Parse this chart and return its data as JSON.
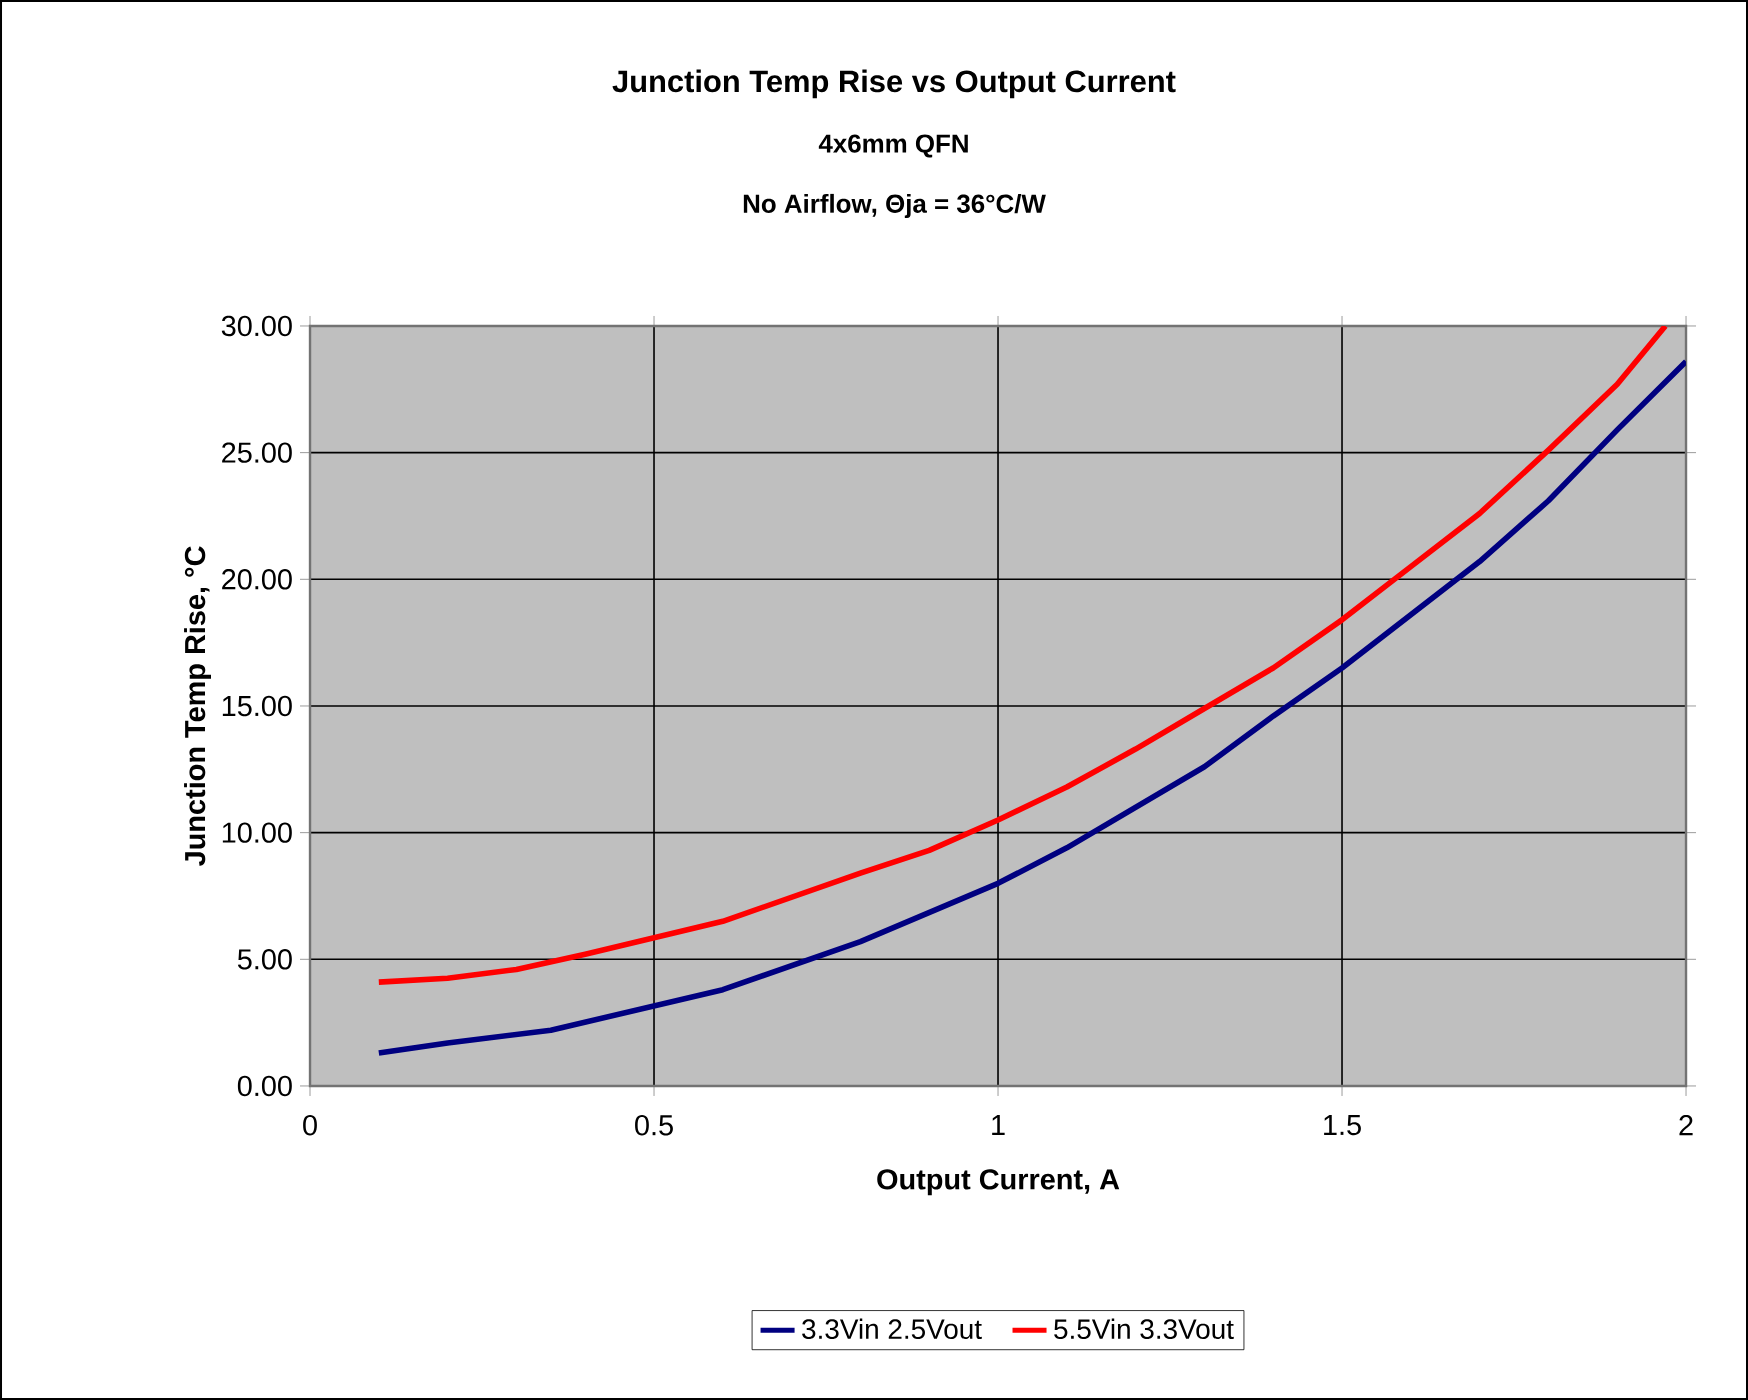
{
  "chart_data": {
    "type": "line",
    "title": "Junction Temp Rise vs Output Current",
    "subtitle": "4x6mm QFN",
    "annotations": [
      "No Airflow, Θja = 36°C/W"
    ],
    "xlabel": "Output Current, A",
    "ylabel": "Junction Temp Rise, °C",
    "xlim": [
      0,
      2
    ],
    "ylim": [
      0,
      30
    ],
    "xticks": [
      0,
      0.5,
      1,
      1.5,
      2
    ],
    "yticks": [
      {
        "value": 0,
        "label": "0.00"
      },
      {
        "value": 5,
        "label": "5.00"
      },
      {
        "value": 10,
        "label": "10.00"
      },
      {
        "value": 15,
        "label": "15.00"
      },
      {
        "value": 20,
        "label": "20.00"
      },
      {
        "value": 25,
        "label": "25.00"
      },
      {
        "value": 30,
        "label": "30.00"
      }
    ],
    "grid": true,
    "legend": "bottom",
    "marker": "none",
    "line_style": "solid",
    "series": [
      {
        "name": "3.3Vin 2.5Vout",
        "color": "#000080",
        "x": [
          0.1,
          0.2,
          0.35,
          0.6,
          0.8,
          1.0,
          1.1,
          1.3,
          1.4,
          1.5,
          1.6,
          1.7,
          1.8,
          1.9,
          2.0
        ],
        "values": [
          1.3,
          1.7,
          2.2,
          3.8,
          5.7,
          8.0,
          9.4,
          12.6,
          14.6,
          16.5,
          18.6,
          20.7,
          23.1,
          25.9,
          28.6
        ]
      },
      {
        "name": "5.5Vin 3.3Vout",
        "color": "#ff0000",
        "x": [
          0.1,
          0.2,
          0.3,
          0.4,
          0.6,
          0.8,
          0.9,
          1.0,
          1.1,
          1.2,
          1.3,
          1.4,
          1.5,
          1.6,
          1.7,
          1.8,
          1.9,
          1.97
        ],
        "values": [
          4.1,
          4.25,
          4.6,
          5.2,
          6.5,
          8.4,
          9.3,
          10.5,
          11.8,
          13.3,
          14.9,
          16.5,
          18.4,
          20.5,
          22.6,
          25.1,
          27.7,
          30.0
        ]
      }
    ]
  }
}
